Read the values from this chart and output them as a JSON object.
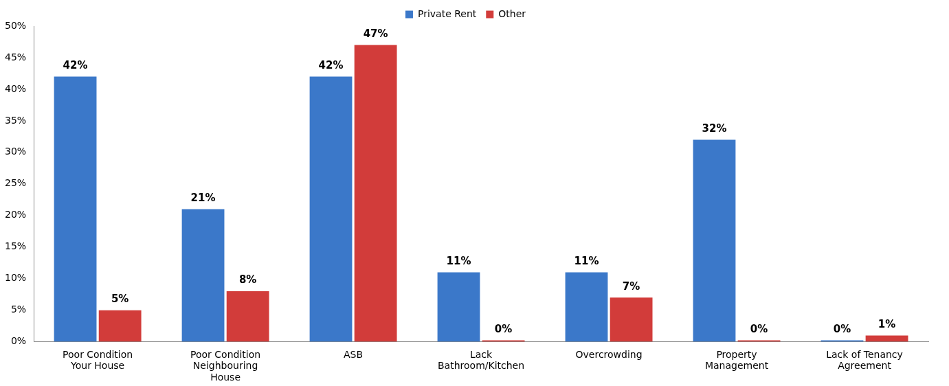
{
  "chart_data": {
    "type": "bar",
    "categories": [
      "Poor Condition Your House",
      "Poor Condition Neighbouring House",
      "ASB",
      "Lack Bathroom/Kitchen",
      "Overcrowding",
      "Property Management",
      "Lack of Tenancy Agreement"
    ],
    "series": [
      {
        "name": "Private Rent",
        "color": "#3b78c9",
        "values": [
          42,
          21,
          42,
          11,
          11,
          32,
          0
        ],
        "value_labels": [
          "42%",
          "21%",
          "42%",
          "11%",
          "11%",
          "32%",
          "0%"
        ]
      },
      {
        "name": "Other",
        "color": "#d23c3a",
        "values": [
          5,
          8,
          47,
          0,
          7,
          0,
          1
        ],
        "value_labels": [
          "5%",
          "8%",
          "47%",
          "0%",
          "7%",
          "0%",
          "1%"
        ]
      }
    ],
    "ylim": [
      0,
      50
    ],
    "yticks": [
      {
        "value": 0,
        "label": "0%"
      },
      {
        "value": 5,
        "label": "5%"
      },
      {
        "value": 10,
        "label": "10%"
      },
      {
        "value": 15,
        "label": "15%"
      },
      {
        "value": 20,
        "label": "20%"
      },
      {
        "value": 25,
        "label": "25%"
      },
      {
        "value": 30,
        "label": "30%"
      },
      {
        "value": 35,
        "label": "35%"
      },
      {
        "value": 40,
        "label": "40%"
      },
      {
        "value": 45,
        "label": "45%"
      },
      {
        "value": 50,
        "label": "50%"
      }
    ],
    "grid": false,
    "legend": "top"
  }
}
